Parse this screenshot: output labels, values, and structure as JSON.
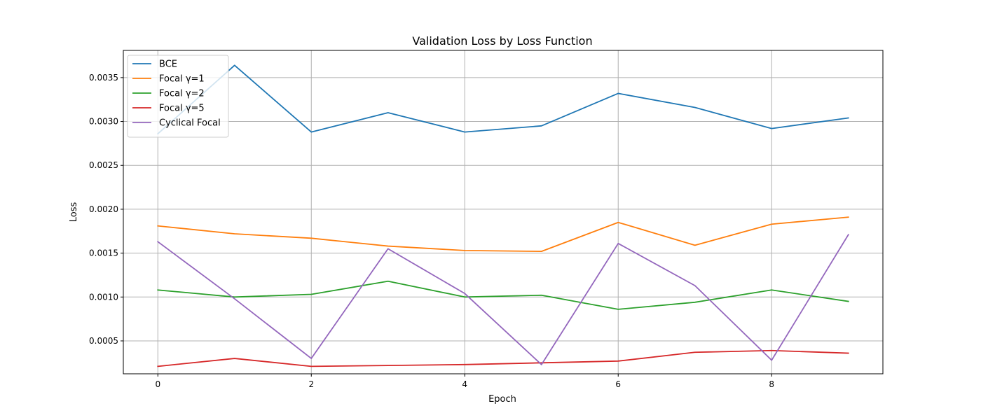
{
  "chart_data": {
    "type": "line",
    "title": "Validation Loss by Loss Function",
    "xlabel": "Epoch",
    "ylabel": "Loss",
    "x": [
      0,
      1,
      2,
      3,
      4,
      5,
      6,
      7,
      8,
      9
    ],
    "xlim": [
      -0.45,
      9.45
    ],
    "ylim": [
      0.000125,
      0.00381
    ],
    "xticks": [
      0,
      2,
      4,
      6,
      8
    ],
    "xtick_labels": [
      "0",
      "2",
      "4",
      "6",
      "8"
    ],
    "yticks": [
      0.0005,
      0.001,
      0.0015,
      0.002,
      0.0025,
      0.003,
      0.0035
    ],
    "ytick_labels": [
      "0.0005",
      "0.0010",
      "0.0015",
      "0.0020",
      "0.0025",
      "0.0030",
      "0.0035"
    ],
    "grid": true,
    "legend_position": "top-left",
    "series": [
      {
        "name": "BCE",
        "color": "#1f77b4",
        "values": [
          0.00286,
          0.00364,
          0.00288,
          0.0031,
          0.00288,
          0.00295,
          0.00332,
          0.00316,
          0.00292,
          0.00304
        ]
      },
      {
        "name": "Focal γ=1",
        "color": "#ff7f0e",
        "values": [
          0.00181,
          0.00172,
          0.00167,
          0.00158,
          0.00153,
          0.00152,
          0.00185,
          0.00159,
          0.00183,
          0.00191
        ]
      },
      {
        "name": "Focal γ=2",
        "color": "#2ca02c",
        "values": [
          0.00108,
          0.001,
          0.00103,
          0.00118,
          0.001,
          0.00102,
          0.00086,
          0.00094,
          0.00108,
          0.00095
        ]
      },
      {
        "name": "Focal γ=5",
        "color": "#d62728",
        "values": [
          0.00021,
          0.0003,
          0.00021,
          0.00022,
          0.00023,
          0.00025,
          0.00027,
          0.00037,
          0.00039,
          0.00036
        ]
      },
      {
        "name": "Cyclical Focal",
        "color": "#9467bd",
        "values": [
          0.00163,
          0.00098,
          0.0003,
          0.00155,
          0.00104,
          0.00023,
          0.00161,
          0.00113,
          0.00028,
          0.00171
        ]
      }
    ]
  }
}
